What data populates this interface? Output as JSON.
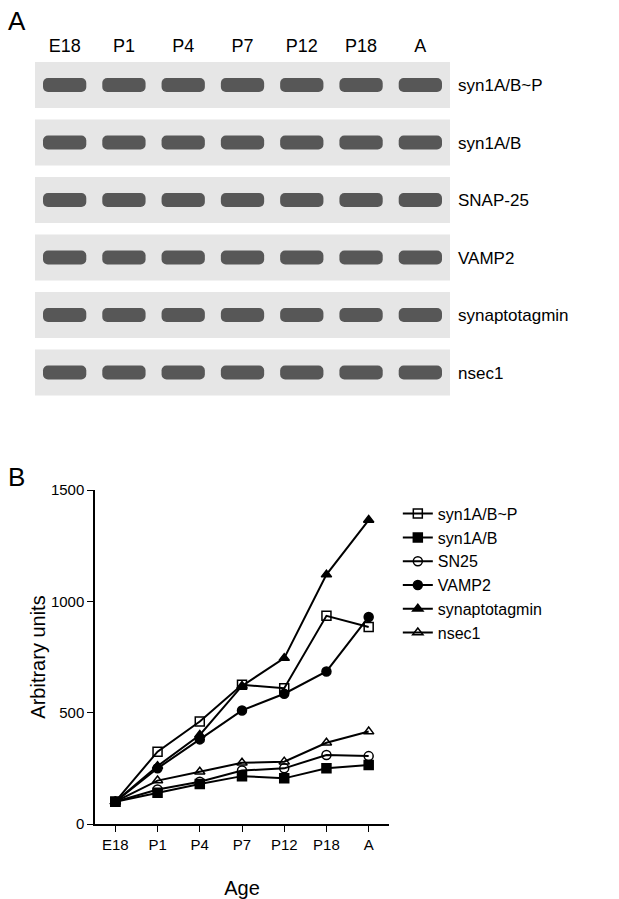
{
  "panel_labels": [
    "A",
    "B"
  ],
  "panel_a": {
    "lanes": [
      "E18",
      "P1",
      "P4",
      "P7",
      "P12",
      "P18",
      "A"
    ],
    "rows": [
      "syn1A/B~P",
      "syn1A/B",
      "SNAP-25",
      "VAMP2",
      "synaptotagmin",
      "nsec1"
    ]
  },
  "chart_data": {
    "type": "line",
    "x_label": "Age",
    "y_label": "Arbitrary units",
    "categories": [
      "E18",
      "P1",
      "P4",
      "P7",
      "P12",
      "P18",
      "A"
    ],
    "ylim": [
      0,
      1500
    ],
    "yticks": [
      0,
      500,
      1000,
      1500
    ],
    "grid": false,
    "legend": "right",
    "series": [
      {
        "name": "syn1A/B~P",
        "color": "#000000",
        "marker": "square-open",
        "values": [
          100,
          325,
          460,
          625,
          610,
          935,
          885
        ]
      },
      {
        "name": "syn1A/B",
        "color": "#000000",
        "marker": "square",
        "values": [
          100,
          140,
          180,
          215,
          205,
          250,
          265
        ]
      },
      {
        "name": "SN25",
        "color": "#000000",
        "marker": "circle-open",
        "values": [
          100,
          155,
          190,
          240,
          250,
          310,
          305
        ]
      },
      {
        "name": "VAMP2",
        "color": "#000000",
        "marker": "circle",
        "values": [
          100,
          250,
          380,
          510,
          585,
          685,
          930
        ]
      },
      {
        "name": "synaptotagmin",
        "color": "#000000",
        "marker": "triangle-up",
        "values": [
          100,
          260,
          400,
          620,
          745,
          1120,
          1365
        ]
      },
      {
        "name": "nsec1",
        "color": "#000000",
        "marker": "triangle-up-open",
        "values": [
          100,
          195,
          235,
          275,
          280,
          365,
          415
        ]
      }
    ]
  }
}
